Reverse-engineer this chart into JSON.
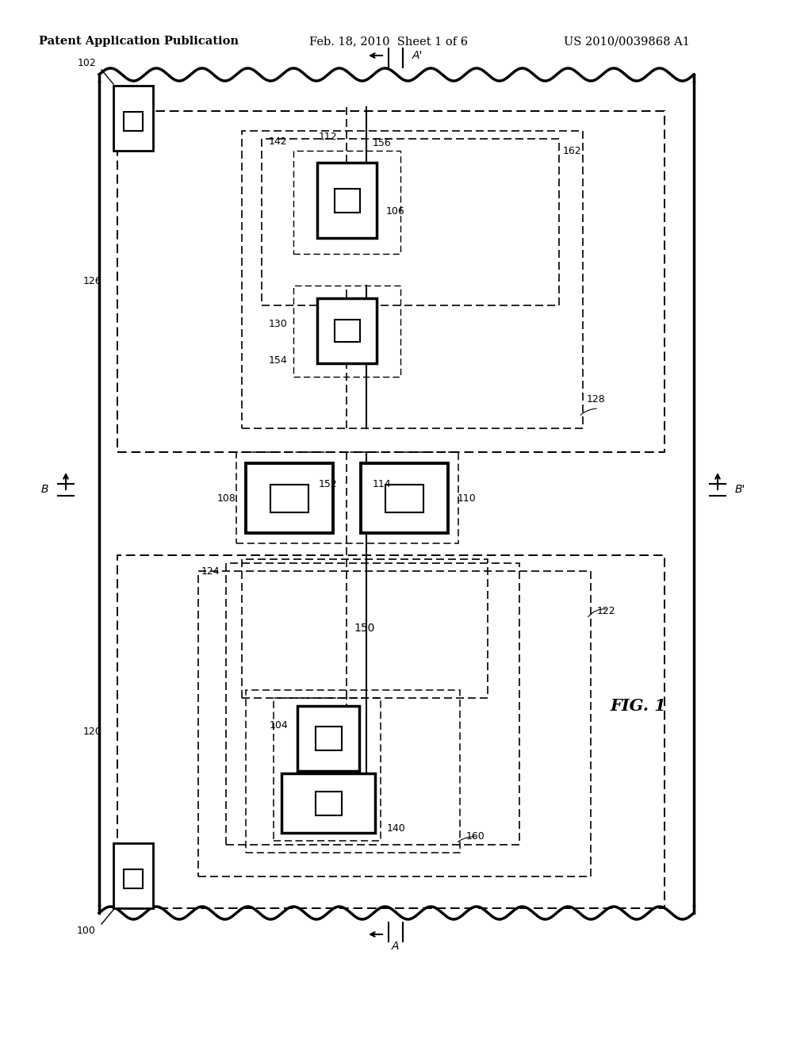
{
  "title_left": "Patent Application Publication",
  "title_mid": "Feb. 18, 2010  Sheet 1 of 6",
  "title_right": "US 2010/0039868 A1",
  "fig_label": "FIG. 1",
  "bg_color": "#ffffff"
}
